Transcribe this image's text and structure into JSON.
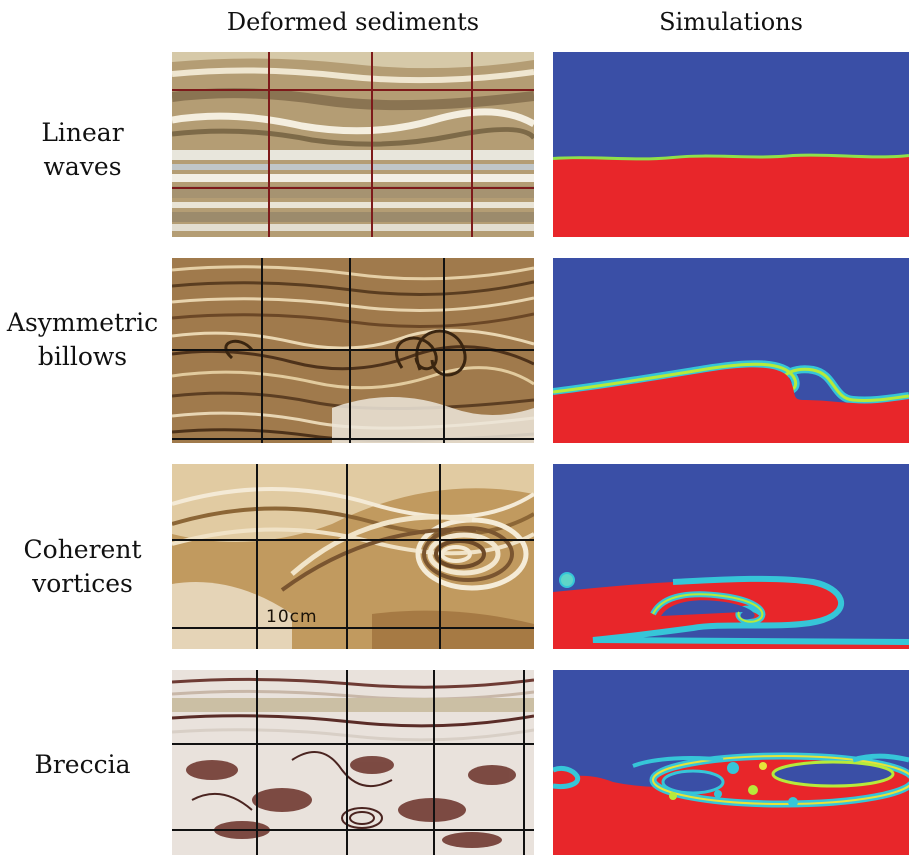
{
  "column_headers": {
    "left": "Deformed sediments",
    "right": "Simulations"
  },
  "rows": [
    {
      "label_lines": [
        "Linear",
        "waves"
      ]
    },
    {
      "label_lines": [
        "Asymmetric",
        "billows"
      ]
    },
    {
      "label_lines": [
        "Coherent",
        "vortices"
      ],
      "scale_label": "10cm"
    },
    {
      "label_lines": [
        "Breccia"
      ]
    }
  ],
  "colors": {
    "sim_upper_fluid": "#3a4fa6",
    "sim_lower_fluid": "#e8262a"
  }
}
